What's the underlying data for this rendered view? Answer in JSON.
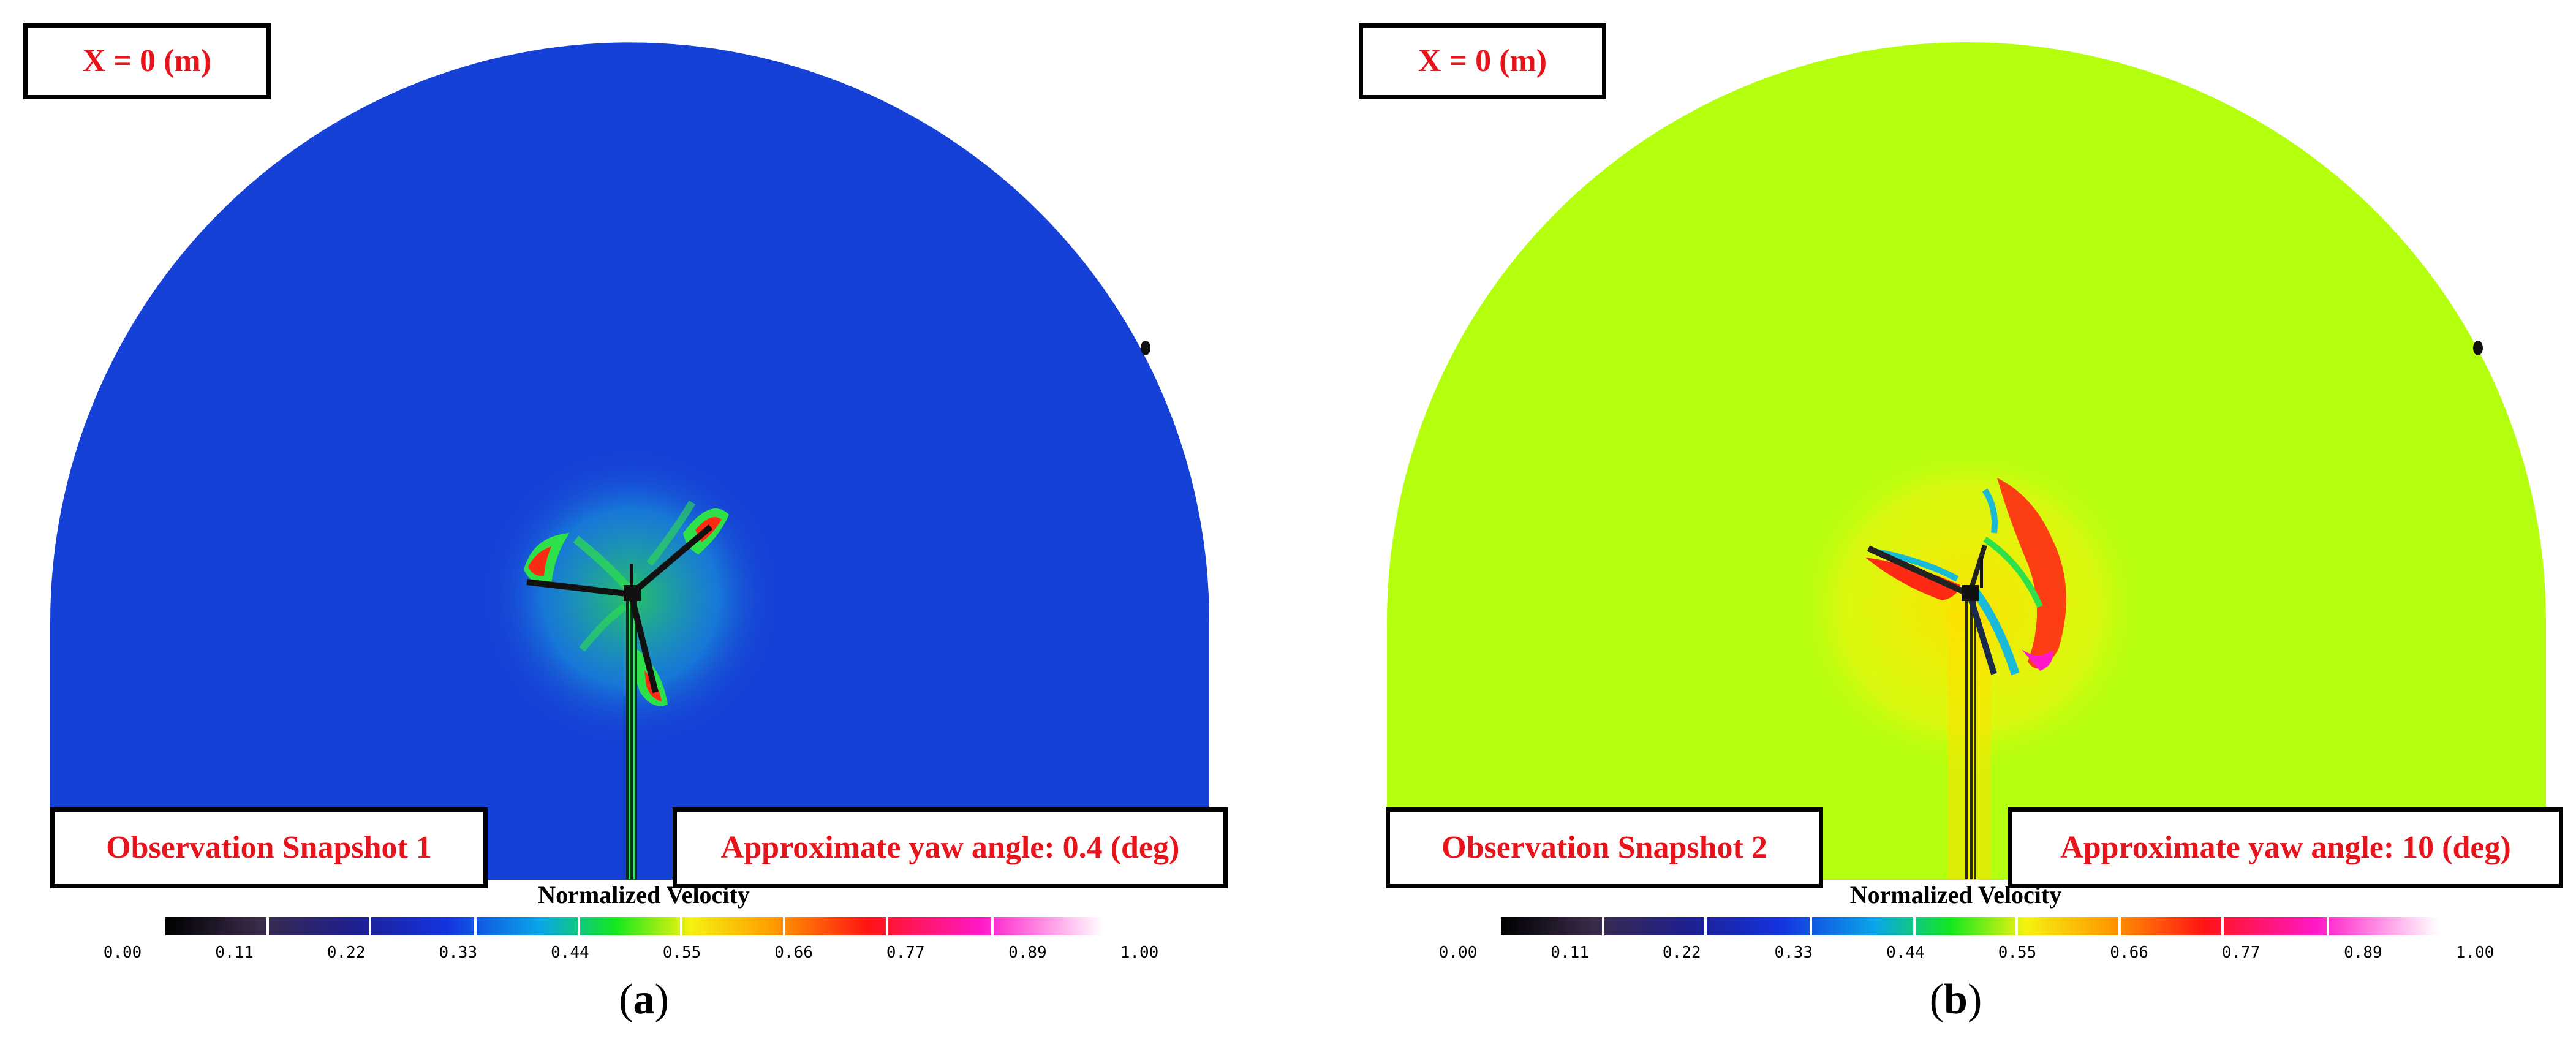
{
  "colorbar": {
    "title": "Normalized Velocity",
    "ticks": [
      "0.00",
      "0.11",
      "0.22",
      "0.33",
      "0.44",
      "0.55",
      "0.66",
      "0.77",
      "0.89",
      "1.00"
    ],
    "stops": [
      "#000000",
      "#3a2b4a",
      "#1e1f8f",
      "#1433e0",
      "#0aa6e8",
      "#14e81e",
      "#f5f210",
      "#ff9a00",
      "#ff1414",
      "#ff18c8",
      "#ffffff"
    ]
  },
  "panels": [
    {
      "x_label": "X = 0 (m)",
      "snapshot_label": "Observation Snapshot 1",
      "yaw_label": "Approximate yaw angle: 0.4 (deg)",
      "caption_open": "(",
      "caption_letter": "a",
      "caption_close": ")",
      "background_color": "#1641d6"
    },
    {
      "x_label": "X = 0 (m)",
      "snapshot_label": "Observation Snapshot 2",
      "yaw_label": "Approximate yaw angle: 10 (deg)",
      "caption_open": "(",
      "caption_letter": "b",
      "caption_close": ")",
      "background_color": "#b4ff0e"
    }
  ]
}
